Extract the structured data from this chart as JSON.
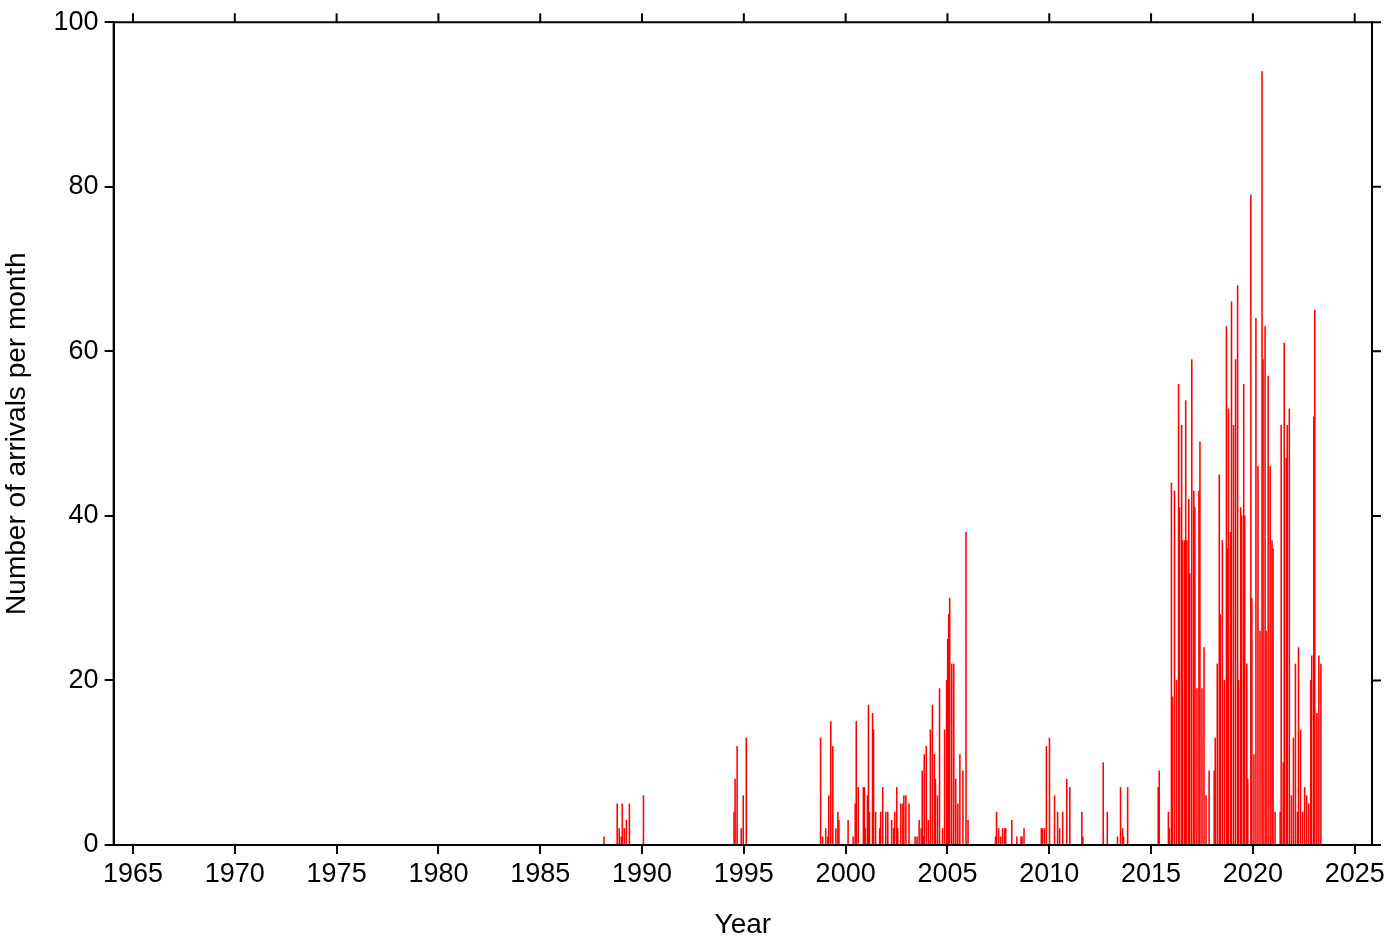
{
  "chart_data": {
    "type": "bar",
    "xlabel": "Year",
    "ylabel": "Number of arrivals per month",
    "x": [
      1988.13,
      1988.78,
      1988.88,
      1988.98,
      1989.03,
      1989.13,
      1989.23,
      1989.38,
      1990.07,
      1994.52,
      1994.57,
      1994.67,
      1994.87,
      1994.97,
      1995.12,
      1998.77,
      1998.87,
      1999.02,
      1999.12,
      1999.17,
      1999.27,
      1999.37,
      1999.52,
      1999.62,
      1999.67,
      2000.12,
      2000.37,
      2000.47,
      2000.52,
      2000.62,
      2000.87,
      2000.92,
      2000.97,
      2001.07,
      2001.12,
      2001.17,
      2001.32,
      2001.37,
      2001.47,
      2001.67,
      2001.72,
      2001.82,
      2001.97,
      2002.07,
      2002.26,
      2002.36,
      2002.41,
      2002.51,
      2002.56,
      2002.71,
      2002.81,
      2002.86,
      2002.96,
      2003.11,
      2003.41,
      2003.51,
      2003.61,
      2003.71,
      2003.76,
      2003.81,
      2003.86,
      2003.96,
      2004.06,
      2004.16,
      2004.26,
      2004.36,
      2004.41,
      2004.51,
      2004.61,
      2004.76,
      2004.86,
      2004.96,
      2005.01,
      2005.06,
      2005.11,
      2005.21,
      2005.31,
      2005.41,
      2005.51,
      2005.61,
      2005.76,
      2005.91,
      2006.01,
      2007.36,
      2007.41,
      2007.51,
      2007.61,
      2007.71,
      2007.81,
      2007.86,
      2008.16,
      2008.41,
      2008.61,
      2008.66,
      2008.76,
      2009.61,
      2009.66,
      2009.76,
      2009.86,
      2010.01,
      2010.26,
      2010.41,
      2010.51,
      2010.66,
      2010.86,
      2011.01,
      2011.6,
      2011.65,
      2012.65,
      2012.85,
      2013.35,
      2013.5,
      2013.6,
      2013.65,
      2013.85,
      2015.35,
      2015.4,
      2015.85,
      2015.9,
      2016.0,
      2016.05,
      2016.15,
      2016.25,
      2016.35,
      2016.4,
      2016.5,
      2016.55,
      2016.65,
      2016.7,
      2016.75,
      2016.85,
      2016.9,
      2017.0,
      2017.1,
      2017.15,
      2017.25,
      2017.35,
      2017.4,
      2017.5,
      2017.6,
      2017.7,
      2017.85,
      2018.1,
      2018.15,
      2018.25,
      2018.35,
      2018.4,
      2018.5,
      2018.6,
      2018.7,
      2018.75,
      2018.8,
      2018.9,
      2018.95,
      2019.05,
      2019.15,
      2019.25,
      2019.3,
      2019.4,
      2019.45,
      2019.55,
      2019.6,
      2019.7,
      2019.75,
      2019.9,
      2019.95,
      2020.05,
      2020.15,
      2020.25,
      2020.35,
      2020.45,
      2020.5,
      2020.6,
      2020.65,
      2020.75,
      2020.85,
      2020.94,
      2020.99,
      2021.09,
      2021.34,
      2021.39,
      2021.49,
      2021.54,
      2021.64,
      2021.69,
      2021.79,
      2021.89,
      2021.99,
      2022.09,
      2022.19,
      2022.24,
      2022.34,
      2022.44,
      2022.54,
      2022.64,
      2022.74,
      2022.84,
      2022.89,
      2022.99,
      2023.04,
      2023.14,
      2023.24,
      2023.34
    ],
    "values": [
      1,
      5,
      2,
      1,
      5,
      2,
      3,
      5,
      6,
      4,
      8,
      12,
      2,
      6,
      13,
      13,
      1,
      2,
      1,
      6,
      15,
      12,
      2,
      4,
      3,
      3,
      1,
      5,
      15,
      7,
      7,
      7,
      2,
      6,
      17,
      4,
      16,
      14,
      4,
      2,
      4,
      7,
      4,
      4,
      3,
      2,
      4,
      7,
      2,
      5,
      5,
      6,
      6,
      5,
      1,
      1,
      3,
      2,
      9,
      1,
      11,
      12,
      3,
      14,
      17,
      11,
      8,
      6,
      19,
      2,
      14,
      20,
      25,
      28,
      30,
      22,
      22,
      8,
      5,
      11,
      9,
      38,
      3,
      1,
      4,
      2,
      1,
      2,
      2,
      2,
      3,
      1,
      1,
      1,
      2,
      2,
      2,
      2,
      12,
      13,
      6,
      4,
      2,
      4,
      8,
      7,
      4,
      1,
      10,
      4,
      1,
      7,
      2,
      1,
      7,
      7,
      9,
      4,
      2,
      44,
      18,
      43,
      20,
      56,
      41,
      51,
      37,
      37,
      54,
      37,
      42,
      33,
      59,
      43,
      41,
      19,
      43,
      49,
      19,
      24,
      6,
      9,
      9,
      13,
      22,
      45,
      28,
      37,
      20,
      63,
      36,
      53,
      38,
      66,
      51,
      59,
      68,
      20,
      41,
      40,
      56,
      40,
      22,
      8,
      79,
      30,
      11,
      64,
      46,
      26,
      94,
      59,
      63,
      26,
      57,
      46,
      37,
      36,
      4,
      4,
      51,
      10,
      61,
      47,
      51,
      53,
      6,
      13,
      22,
      4,
      24,
      14,
      4,
      7,
      6,
      5,
      20,
      23,
      52,
      65,
      16,
      23,
      22
    ],
    "color": "#ff0000",
    "xlim": [
      1964.05,
      2025.85
    ],
    "xticks": [
      1965,
      1970,
      1975,
      1980,
      1985,
      1990,
      1995,
      2000,
      2005,
      2010,
      2015,
      2020,
      2025
    ],
    "ylim": [
      0,
      100
    ],
    "yticks": [
      0,
      20,
      40,
      60,
      80,
      100
    ]
  }
}
